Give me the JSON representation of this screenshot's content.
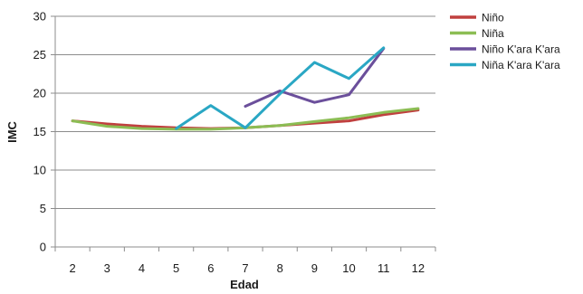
{
  "chart_data": {
    "type": "line",
    "title": "",
    "xlabel": "Edad",
    "ylabel": "IMC",
    "x": [
      2,
      3,
      4,
      5,
      6,
      7,
      8,
      9,
      10,
      11,
      12
    ],
    "xlim": [
      1.5,
      12.5
    ],
    "ylim": [
      0,
      30
    ],
    "yticks": [
      0,
      5,
      10,
      15,
      20,
      25,
      30
    ],
    "grid": "horizontal",
    "legend_position": "right",
    "series": [
      {
        "name": "Niño",
        "color": "#c0403f",
        "values": [
          16.4,
          16.0,
          15.7,
          15.5,
          15.4,
          15.5,
          15.8,
          16.1,
          16.4,
          17.2,
          17.8
        ]
      },
      {
        "name": "Niña",
        "color": "#8cbd54",
        "values": [
          16.4,
          15.7,
          15.4,
          15.3,
          15.3,
          15.5,
          15.8,
          16.3,
          16.8,
          17.5,
          18.0
        ]
      },
      {
        "name": "Niño K'ara K'ara",
        "color": "#6b4f9b",
        "values": [
          null,
          null,
          null,
          null,
          null,
          18.3,
          20.3,
          18.8,
          19.8,
          25.8,
          null
        ]
      },
      {
        "name": "Niña K'ara K'ara",
        "color": "#2aa7c4",
        "values": [
          null,
          null,
          null,
          15.4,
          18.4,
          15.5,
          19.9,
          24.0,
          21.9,
          25.9,
          null
        ]
      }
    ]
  }
}
